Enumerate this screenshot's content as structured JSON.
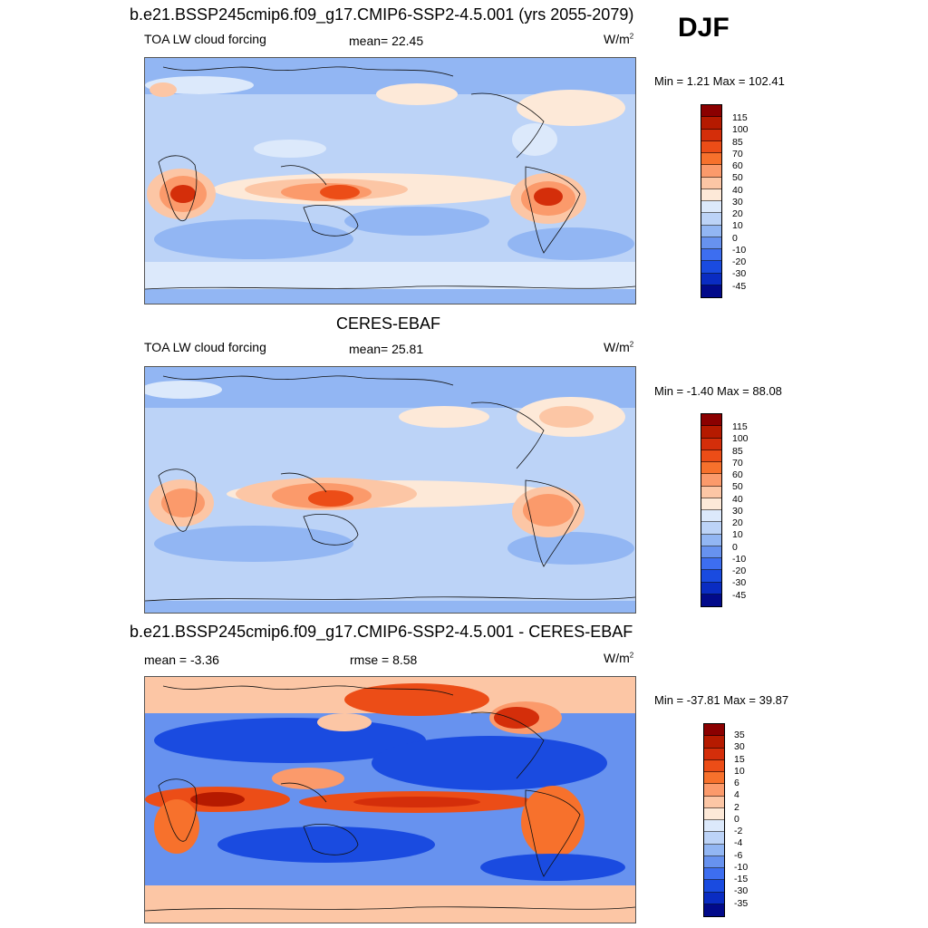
{
  "season": "DJF",
  "panels": [
    {
      "title": "b.e21.BSSP245cmip6.f09_g17.CMIP6-SSP2-4.5.001 (yrs 2055-2079)",
      "left_label": "TOA LW cloud forcing",
      "center_label": "mean=  22.45",
      "units_label": "W/m",
      "units_exp": "2",
      "minmax": "Min =   1.21 Max = 102.41"
    },
    {
      "title": "CERES-EBAF",
      "left_label": "TOA LW cloud forcing",
      "center_label": "mean=  25.81",
      "units_label": "W/m",
      "units_exp": "2",
      "minmax": "Min =  -1.40 Max =  88.08"
    },
    {
      "title": "b.e21.BSSP245cmip6.f09_g17.CMIP6-SSP2-4.5.001 - CERES-EBAF",
      "left_label": "mean =  -3.36",
      "center_label": "rmse =   8.58",
      "units_label": "W/m",
      "units_exp": "2",
      "minmax": "Min = -37.81 Max =  39.87"
    }
  ],
  "colorbars": {
    "fields": {
      "labels": [
        "115",
        "100",
        "85",
        "70",
        "60",
        "50",
        "40",
        "30",
        "20",
        "10",
        "0",
        "-10",
        "-20",
        "-30",
        "-45"
      ],
      "colors": [
        "#8b0000",
        "#b51a00",
        "#d42e0a",
        "#ec4d17",
        "#f7712c",
        "#fb9a6b",
        "#fcc6a5",
        "#fde9d8",
        "#dce9fb",
        "#bcd3f7",
        "#92b6f3",
        "#6792ef",
        "#3d6ef0",
        "#1a4be0",
        "#0a2cc2",
        "#020a8a"
      ]
    },
    "difference": {
      "labels": [
        "35",
        "30",
        "15",
        "10",
        "6",
        "4",
        "2",
        "0",
        "-2",
        "-4",
        "-6",
        "-10",
        "-15",
        "-30",
        "-35"
      ],
      "colors": [
        "#8b0000",
        "#b51a00",
        "#d42e0a",
        "#ec4d17",
        "#f7712c",
        "#fb9a6b",
        "#fcc6a5",
        "#fde9d8",
        "#dce9fb",
        "#bcd3f7",
        "#92b6f3",
        "#6792ef",
        "#3d6ef0",
        "#1a4be0",
        "#0a2cc2",
        "#020a8a"
      ]
    }
  }
}
